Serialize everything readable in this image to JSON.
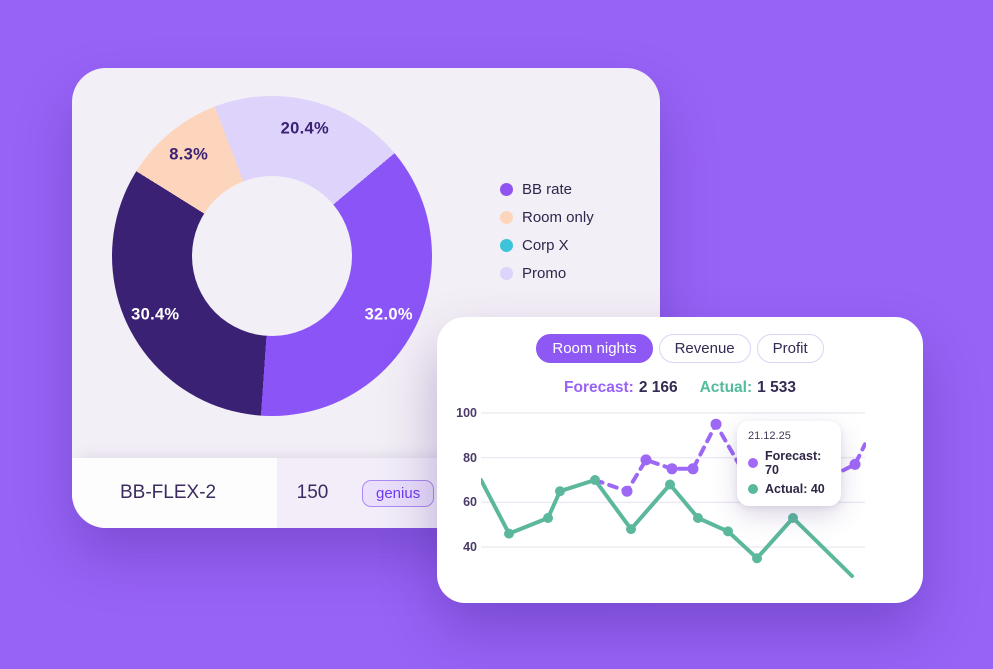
{
  "colors": {
    "page_background": "#9763f7",
    "left_card_background": "#f3eff6",
    "right_card_background": "#ffffff",
    "active_tab": "#8d58f3",
    "forecast_accent": "#9a62f4",
    "actual_accent": "#54bb9b"
  },
  "donut_card": {
    "footer": {
      "rate_name": "BB-FLEX-2",
      "rooms": "150",
      "badge_label": "genius"
    }
  },
  "forecast_card": {
    "tabs": [
      {
        "label": "Room nights",
        "active": true
      },
      {
        "label": "Revenue",
        "active": false
      },
      {
        "label": "Profit",
        "active": false
      }
    ],
    "summary": {
      "forecast_label": "Forecast:",
      "forecast_value": "2 166",
      "actual_label": "Actual:",
      "actual_value": "1 533"
    },
    "tooltip": {
      "date": "21.12.25",
      "rows": [
        {
          "color": "#a26bf7",
          "text": "Forecast: 70"
        },
        {
          "color": "#5ab89b",
          "text": "Actual: 40"
        }
      ]
    }
  },
  "chart_data": [
    {
      "type": "pie",
      "title": "Rate mix donut",
      "start_deg": 339,
      "slices": [
        {
          "name": "Promo",
          "value_pct": 20.4,
          "value_label": "20.4%",
          "arc_deg": 71,
          "color": "#ded3fb",
          "label_color": "#3b2174"
        },
        {
          "name": "BB rate",
          "value_pct": 32.0,
          "value_label": "32.0%",
          "arc_deg": 134,
          "color": "#8a54f7",
          "label_color": "#ffffff"
        },
        {
          "name": "",
          "value_pct": 30.4,
          "value_label": "30.4%",
          "arc_deg": 118,
          "color": "#3b2174",
          "label_color": "#ffffff"
        },
        {
          "name": "Room only",
          "value_pct": 8.3,
          "value_label": "8.3%",
          "arc_deg": 37,
          "color": "#fcd5bc",
          "label_color": "#3b2174"
        }
      ],
      "legend": [
        {
          "label": "BB rate",
          "color": "#9154f0"
        },
        {
          "label": "Room only",
          "color": "#fcd5bc"
        },
        {
          "label": "Corp X",
          "color": "#3ec4d8"
        },
        {
          "label": "Promo",
          "color": "#ded3fb"
        }
      ],
      "legend_position": "right"
    },
    {
      "type": "line",
      "title": "Room nights forecast vs actual",
      "yticks": [
        100,
        80,
        60,
        40
      ],
      "ylim": [
        20,
        105
      ],
      "grid": true,
      "series": [
        {
          "name": "Forecast",
          "color": "#9e68f6",
          "dashed": true,
          "points": [
            {
              "x": 0.297,
              "v": 70,
              "dot": false
            },
            {
              "x": 0.38,
              "v": 65,
              "dot": true
            },
            {
              "x": 0.43,
              "v": 79,
              "dot": true
            },
            {
              "x": 0.497,
              "v": 75,
              "dot": true
            },
            {
              "x": 0.552,
              "v": 75,
              "dot": true
            },
            {
              "x": 0.612,
              "v": 95,
              "dot": true
            },
            {
              "x": 0.695,
              "v": 70,
              "dot": false
            },
            {
              "x": 0.917,
              "v": 72,
              "dot": false
            },
            {
              "x": 0.974,
              "v": 77,
              "dot": true
            },
            {
              "x": 1.0,
              "v": 86,
              "dot": false
            }
          ]
        },
        {
          "name": "Actual",
          "color": "#5cb89d",
          "dashed": false,
          "points": [
            {
              "x": 0,
              "v": 70,
              "dot": false
            },
            {
              "x": 0.073,
              "v": 46,
              "dot": true
            },
            {
              "x": 0.174,
              "v": 53,
              "dot": true
            },
            {
              "x": 0.206,
              "v": 65,
              "dot": true
            },
            {
              "x": 0.297,
              "v": 70,
              "dot": true
            },
            {
              "x": 0.391,
              "v": 48,
              "dot": true
            },
            {
              "x": 0.492,
              "v": 68,
              "dot": true
            },
            {
              "x": 0.565,
              "v": 53,
              "dot": true
            },
            {
              "x": 0.643,
              "v": 47,
              "dot": true
            },
            {
              "x": 0.719,
              "v": 35,
              "dot": true
            },
            {
              "x": 0.812,
              "v": 53,
              "dot": true
            },
            {
              "x": 0.966,
              "v": 27,
              "dot": false
            }
          ]
        }
      ]
    }
  ]
}
